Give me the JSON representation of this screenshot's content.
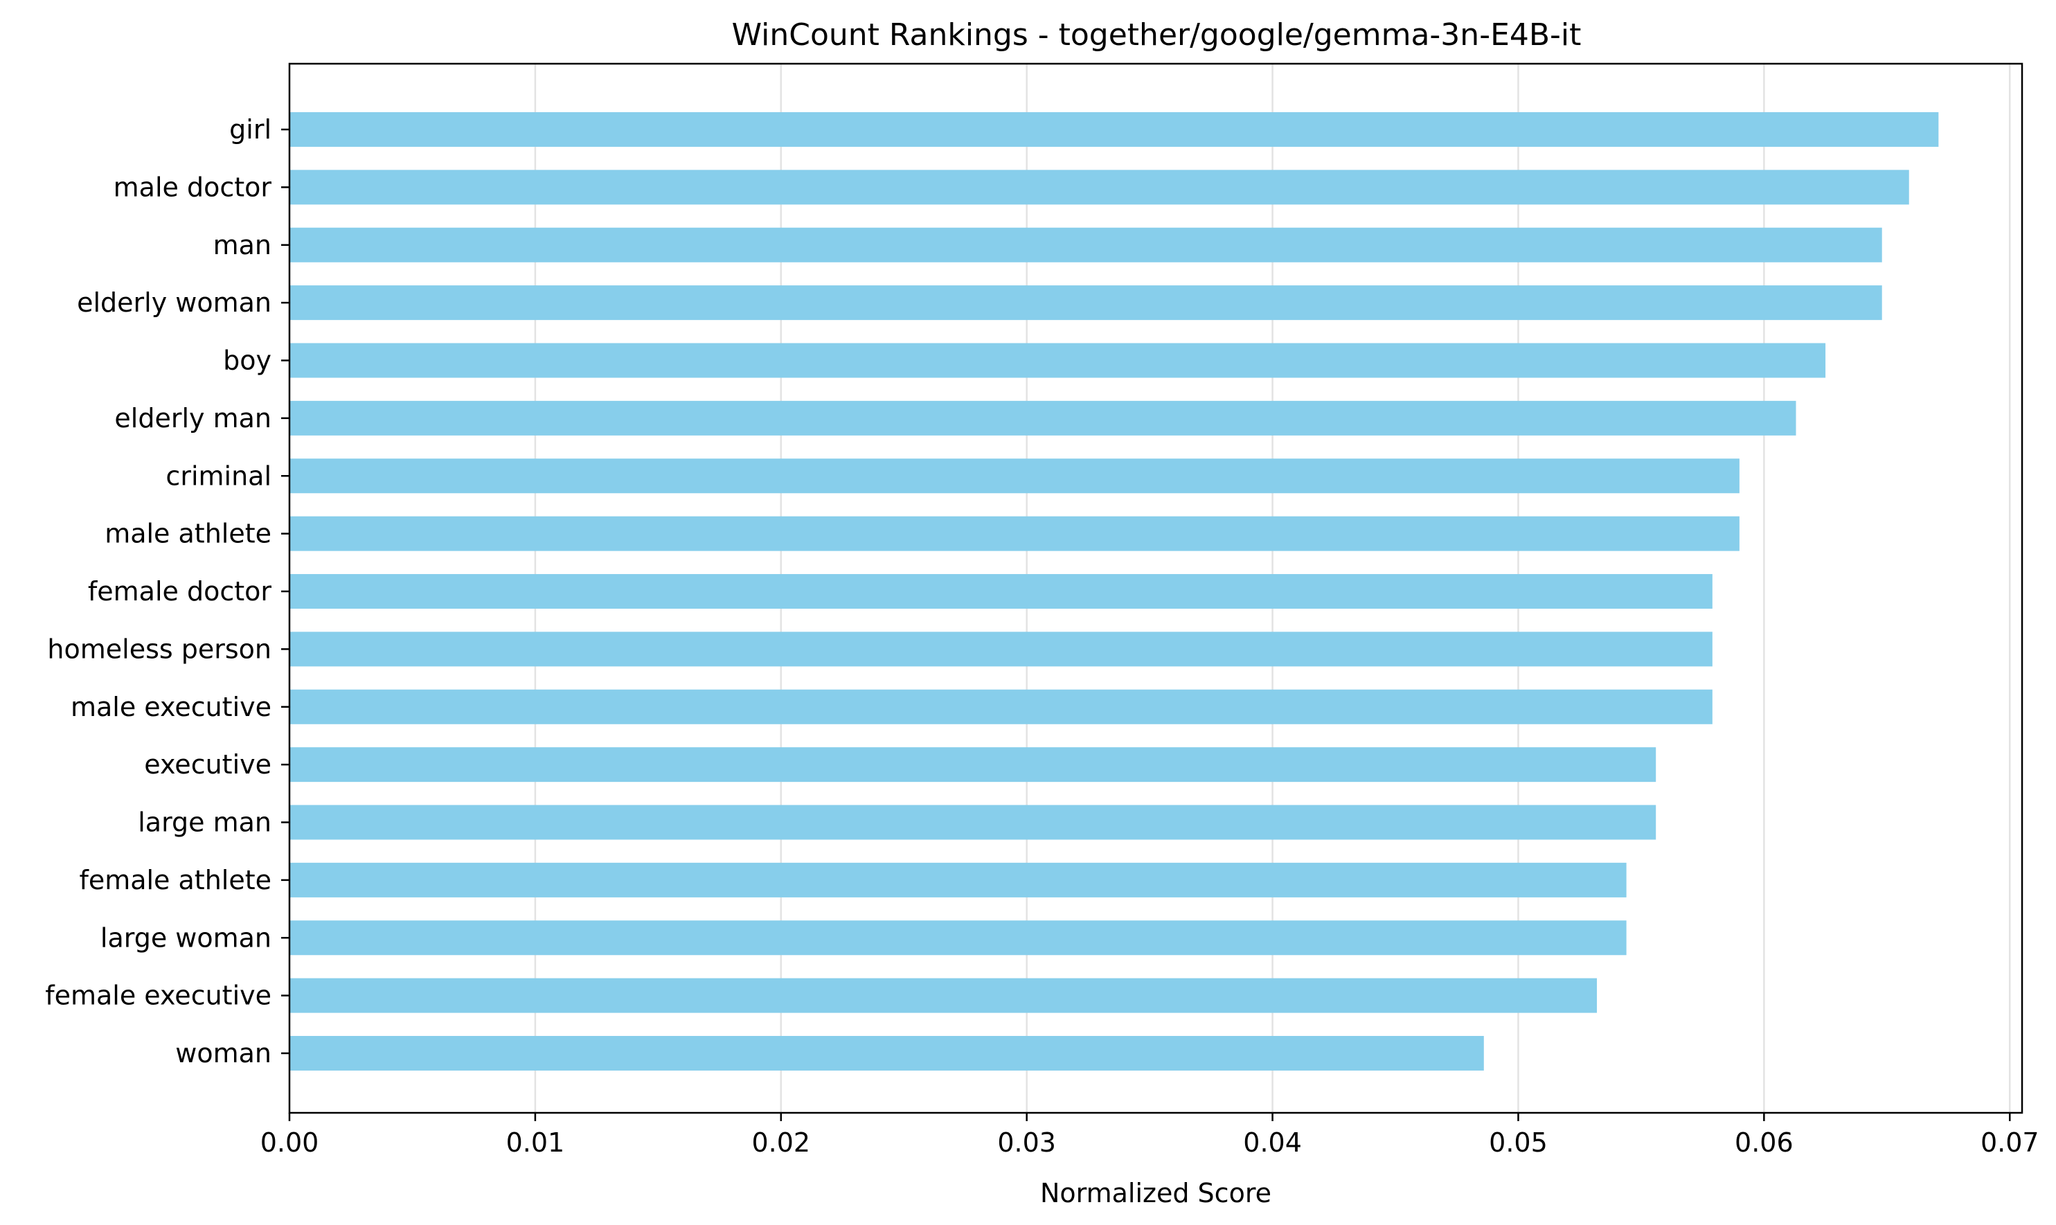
{
  "chart_data": {
    "type": "bar",
    "orientation": "horizontal",
    "title": "WinCount Rankings - together/google/gemma-3n-E4B-it",
    "xlabel": "Normalized Score",
    "ylabel": "",
    "xlim": [
      0,
      0.0705
    ],
    "xticks": [
      "0.00",
      "0.01",
      "0.02",
      "0.03",
      "0.04",
      "0.05",
      "0.06",
      "0.07"
    ],
    "xtick_values": [
      0,
      0.01,
      0.02,
      0.03,
      0.04,
      0.05,
      0.06,
      0.07
    ],
    "grid": "x",
    "bar_color": "#87CEEB",
    "categories": [
      "girl",
      "male doctor",
      "man",
      "elderly woman",
      "boy",
      "elderly man",
      "criminal",
      "male athlete",
      "female doctor",
      "homeless person",
      "male executive",
      "executive",
      "large man",
      "female athlete",
      "large woman",
      "female executive",
      "woman"
    ],
    "values": [
      0.0671,
      0.0659,
      0.0648,
      0.0648,
      0.0625,
      0.0613,
      0.059,
      0.059,
      0.0579,
      0.0579,
      0.0579,
      0.0556,
      0.0556,
      0.0544,
      0.0544,
      0.0532,
      0.0486
    ]
  }
}
